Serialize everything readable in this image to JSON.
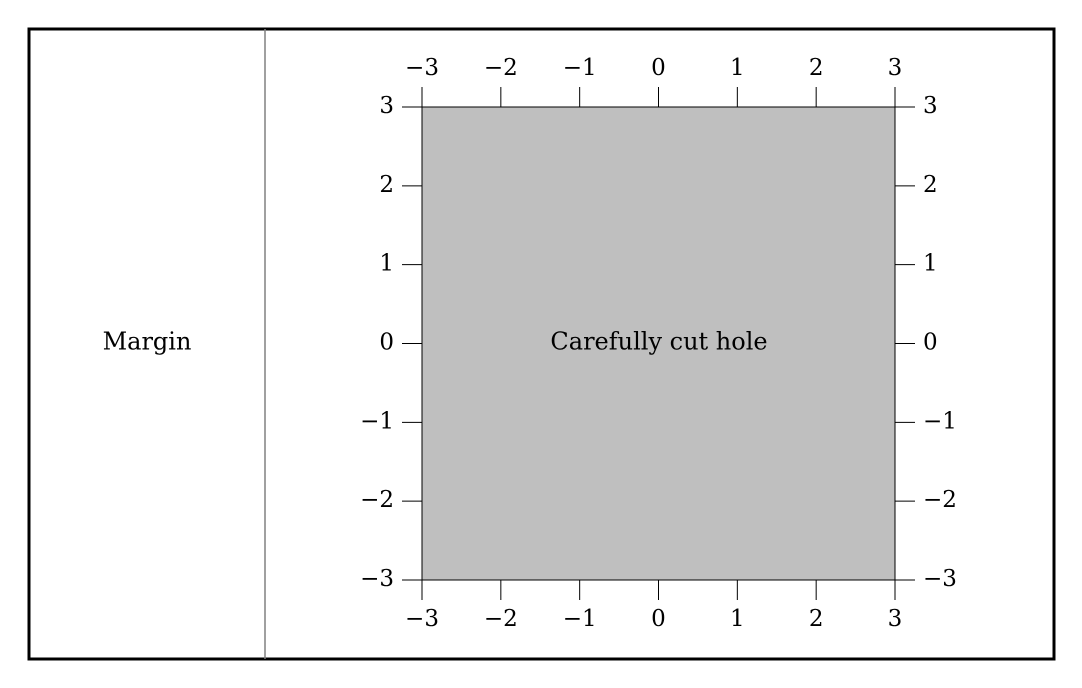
{
  "labels": {
    "margin": "Margin",
    "hole": "Carefully cut hole"
  },
  "axis": {
    "x_ticks": [
      -3,
      -2,
      -1,
      0,
      1,
      2,
      3
    ],
    "y_ticks": [
      3,
      2,
      1,
      0,
      -1,
      -2,
      -3
    ],
    "x_range": [
      -3,
      3
    ],
    "y_range": [
      -3,
      3
    ]
  },
  "colors": {
    "hole_fill": "#bfbfbf",
    "frame": "#000000",
    "divider": "#808080"
  }
}
